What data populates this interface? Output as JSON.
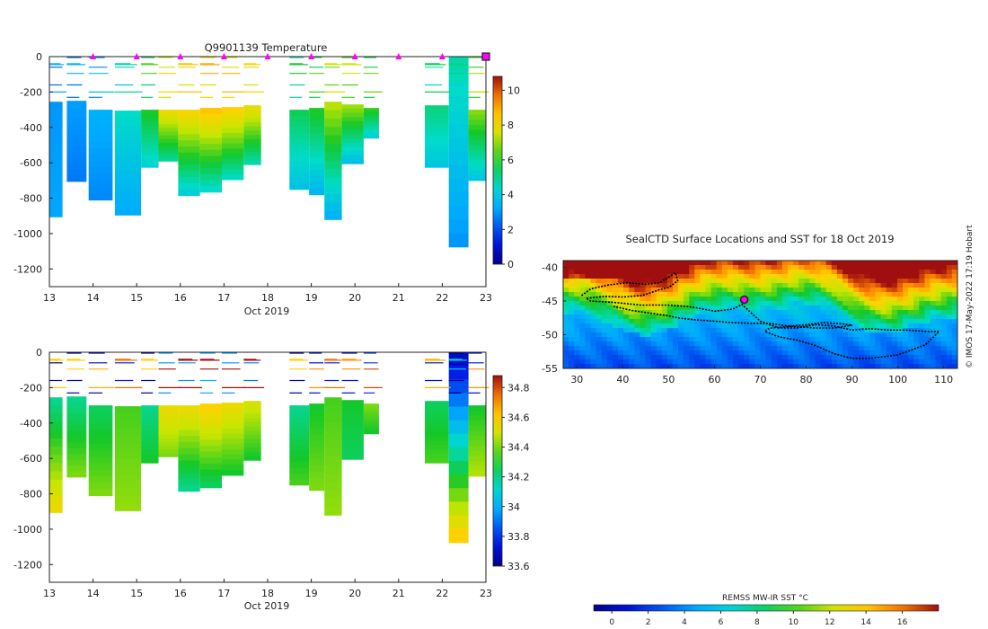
{
  "colors": {
    "background": "#ffffff",
    "axis": "#222222",
    "marker": "#ff00ff",
    "track": "#000000"
  },
  "chart_data": [
    {
      "id": "temperature",
      "type": "heatmap",
      "title": "Q9901139  Temperature",
      "xlabel": "Oct 2019",
      "ylabel": "",
      "xlim": [
        13,
        23
      ],
      "ylim": [
        -1300,
        0
      ],
      "xticks": [
        "13",
        "14",
        "15",
        "16",
        "17",
        "18",
        "19",
        "20",
        "21",
        "22",
        "23"
      ],
      "yticks": [
        "0",
        "-200",
        "-400",
        "-600",
        "-800",
        "-1000",
        "-1200"
      ],
      "colorbar": {
        "ticks": [
          "0",
          "2",
          "4",
          "6",
          "8",
          "10"
        ],
        "range": [
          0,
          10.8
        ]
      },
      "surface_markers_x": [
        14,
        15,
        16,
        17,
        18,
        19,
        20,
        21,
        22
      ],
      "last_marker_x": 23,
      "profiles": [
        {
          "x": 13.0,
          "w": 0.3,
          "top": -255,
          "bottom": -905,
          "v_top": 3.0,
          "v_bottom": 3.2
        },
        {
          "x": 13.4,
          "w": 0.45,
          "top": -250,
          "bottom": -705,
          "v_top": 3.1,
          "v_bottom": 2.6
        },
        {
          "x": 13.9,
          "w": 0.55,
          "top": -300,
          "bottom": -810,
          "v_top": 3.4,
          "v_bottom": 2.8
        },
        {
          "x": 14.5,
          "w": 0.6,
          "top": -305,
          "bottom": -895,
          "v_top": 4.5,
          "v_bottom": 3.3
        },
        {
          "x": 15.1,
          "w": 0.4,
          "top": -300,
          "bottom": -625,
          "v_top": 6.0,
          "v_bottom": 4.3
        },
        {
          "x": 15.5,
          "w": 0.45,
          "top": -300,
          "bottom": -590,
          "v_top": 8.0,
          "v_bottom": 5.0
        },
        {
          "x": 15.95,
          "w": 0.5,
          "top": -300,
          "bottom": -785,
          "v_top": 8.2,
          "v_bottom": 4.2
        },
        {
          "x": 16.45,
          "w": 0.5,
          "top": -290,
          "bottom": -765,
          "v_top": 8.6,
          "v_bottom": 4.5
        },
        {
          "x": 16.95,
          "w": 0.5,
          "top": -285,
          "bottom": -695,
          "v_top": 8.4,
          "v_bottom": 4.6
        },
        {
          "x": 17.45,
          "w": 0.4,
          "top": -275,
          "bottom": -610,
          "v_top": 8.0,
          "v_bottom": 4.8
        },
        {
          "x": 18.5,
          "w": 0.45,
          "top": -300,
          "bottom": -750,
          "v_top": 5.5,
          "v_bottom": 3.9
        },
        {
          "x": 18.95,
          "w": 0.35,
          "top": -290,
          "bottom": -780,
          "v_top": 6.0,
          "v_bottom": 3.6
        },
        {
          "x": 19.3,
          "w": 0.4,
          "top": -255,
          "bottom": -920,
          "v_top": 7.2,
          "v_bottom": 3.5
        },
        {
          "x": 19.7,
          "w": 0.5,
          "top": -270,
          "bottom": -605,
          "v_top": 7.0,
          "v_bottom": 3.8
        },
        {
          "x": 20.2,
          "w": 0.35,
          "top": -290,
          "bottom": -460,
          "v_top": 6.2,
          "v_bottom": 4.2
        },
        {
          "x": 21.6,
          "w": 0.55,
          "top": -275,
          "bottom": -625,
          "v_top": 5.2,
          "v_bottom": 4.0
        },
        {
          "x": 22.15,
          "w": 0.45,
          "top": 0,
          "bottom": -1075,
          "v_top": 4.8,
          "v_bottom": 3.0
        },
        {
          "x": 22.6,
          "w": 0.4,
          "top": -300,
          "bottom": -700,
          "v_top": 6.8,
          "v_bottom": 4.0
        }
      ]
    },
    {
      "id": "salinity",
      "type": "heatmap",
      "title": "",
      "xlabel": "Oct 2019",
      "ylabel": "",
      "xlim": [
        13,
        23
      ],
      "ylim": [
        -1300,
        0
      ],
      "xticks": [
        "13",
        "14",
        "15",
        "16",
        "17",
        "18",
        "19",
        "20",
        "21",
        "22",
        "23"
      ],
      "yticks": [
        "0",
        "-200",
        "-400",
        "-600",
        "-800",
        "-1000",
        "-1200"
      ],
      "colorbar": {
        "ticks": [
          "33.6",
          "33.8",
          "34",
          "34.2",
          "34.4",
          "34.6",
          "34.8"
        ],
        "range": [
          33.6,
          34.88
        ]
      },
      "profiles": [
        {
          "x": 13.0,
          "w": 0.3,
          "top": -255,
          "bottom": -905,
          "v_top": 34.2,
          "v_bottom": 34.55
        },
        {
          "x": 13.4,
          "w": 0.45,
          "top": -250,
          "bottom": -705,
          "v_top": 34.2,
          "v_bottom": 34.4
        },
        {
          "x": 13.9,
          "w": 0.55,
          "top": -300,
          "bottom": -810,
          "v_top": 34.25,
          "v_bottom": 34.4
        },
        {
          "x": 14.5,
          "w": 0.6,
          "top": -305,
          "bottom": -895,
          "v_top": 34.35,
          "v_bottom": 34.42
        },
        {
          "x": 15.1,
          "w": 0.4,
          "top": -300,
          "bottom": -625,
          "v_top": 34.2,
          "v_bottom": 34.3
        },
        {
          "x": 15.5,
          "w": 0.45,
          "top": -300,
          "bottom": -590,
          "v_top": 34.55,
          "v_bottom": 34.4
        },
        {
          "x": 15.95,
          "w": 0.5,
          "top": -300,
          "bottom": -785,
          "v_top": 34.55,
          "v_bottom": 34.2
        },
        {
          "x": 16.45,
          "w": 0.5,
          "top": -290,
          "bottom": -765,
          "v_top": 34.6,
          "v_bottom": 34.25
        },
        {
          "x": 16.95,
          "w": 0.5,
          "top": -285,
          "bottom": -695,
          "v_top": 34.55,
          "v_bottom": 34.3
        },
        {
          "x": 17.45,
          "w": 0.4,
          "top": -275,
          "bottom": -610,
          "v_top": 34.5,
          "v_bottom": 34.3
        },
        {
          "x": 18.5,
          "w": 0.45,
          "top": -300,
          "bottom": -750,
          "v_top": 34.2,
          "v_bottom": 34.35
        },
        {
          "x": 18.95,
          "w": 0.35,
          "top": -290,
          "bottom": -780,
          "v_top": 34.3,
          "v_bottom": 34.4
        },
        {
          "x": 19.3,
          "w": 0.4,
          "top": -255,
          "bottom": -920,
          "v_top": 34.35,
          "v_bottom": 34.42
        },
        {
          "x": 19.7,
          "w": 0.5,
          "top": -270,
          "bottom": -605,
          "v_top": 34.3,
          "v_bottom": 34.25
        },
        {
          "x": 20.2,
          "w": 0.35,
          "top": -290,
          "bottom": -460,
          "v_top": 34.4,
          "v_bottom": 34.3
        },
        {
          "x": 21.6,
          "w": 0.55,
          "top": -275,
          "bottom": -625,
          "v_top": 34.25,
          "v_bottom": 34.35
        },
        {
          "x": 22.15,
          "w": 0.45,
          "top": 0,
          "bottom": -1075,
          "v_top": 33.7,
          "v_bottom": 34.6
        },
        {
          "x": 22.6,
          "w": 0.4,
          "top": -300,
          "bottom": -700,
          "v_top": 34.3,
          "v_bottom": 34.45
        }
      ]
    },
    {
      "id": "sst-map",
      "type": "heatmap",
      "title": "SealCTD Surface Locations and SST for 18 Oct 2019",
      "xlim": [
        27,
        113
      ],
      "ylim": [
        -55,
        -39
      ],
      "xticks": [
        "30",
        "40",
        "50",
        "60",
        "70",
        "80",
        "90",
        "100",
        "110"
      ],
      "yticks": [
        "-40",
        "-45",
        "-50",
        "-55"
      ],
      "credit": "© IMOS 17-May-2022 17:19 Hobart",
      "colorbar": {
        "label": "REMSS MW-IR SST °C",
        "ticks": [
          "0",
          "2",
          "4",
          "6",
          "8",
          "10",
          "12",
          "14",
          "16"
        ],
        "range": [
          -1,
          18
        ]
      },
      "current_position": {
        "lon": 66.5,
        "lat": -44.8
      },
      "track_lon": [
        31,
        33,
        37,
        41,
        45,
        48,
        51.5,
        52,
        50,
        48,
        46,
        44,
        40,
        36,
        32,
        33,
        38,
        44,
        50,
        54,
        56,
        60,
        64,
        66,
        70,
        74,
        78,
        82,
        86,
        90,
        94,
        98,
        102,
        106,
        109,
        106,
        100,
        94,
        90,
        86,
        82,
        78,
        74,
        71,
        72,
        76,
        80,
        84,
        88,
        90,
        86,
        82,
        76,
        72,
        68,
        64,
        60,
        56,
        52,
        50,
        46,
        42,
        38
      ],
      "track_lat": [
        -44.2,
        -43.2,
        -42.6,
        -42.3,
        -42.5,
        -42.3,
        -40.8,
        -42.0,
        -43.0,
        -43.3,
        -43.8,
        -44.2,
        -44.4,
        -44.3,
        -44.6,
        -45.0,
        -45.2,
        -45.6,
        -45.6,
        -45.8,
        -46.0,
        -46.5,
        -46.2,
        -45.5,
        -48.0,
        -49.0,
        -49.0,
        -48.5,
        -48.7,
        -49.3,
        -49.1,
        -49.3,
        -49.3,
        -49.5,
        -49.5,
        -51.5,
        -53.0,
        -53.5,
        -53.5,
        -52.8,
        -51.6,
        -50.8,
        -50.3,
        -49.5,
        -49.0,
        -48.8,
        -48.5,
        -48.2,
        -48.4,
        -48.6,
        -49.0,
        -49.0,
        -48.7,
        -48.3,
        -48.3,
        -48.2,
        -48.0,
        -47.8,
        -47.5,
        -47.2,
        -46.8,
        -46.4,
        -45.8
      ]
    }
  ]
}
